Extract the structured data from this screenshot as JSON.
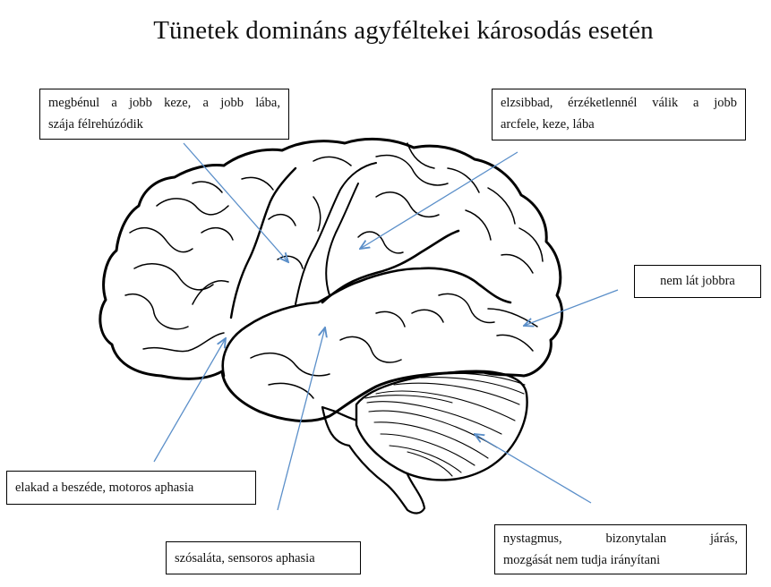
{
  "title": "Tünetek domináns agyféltekei károsodás esetén",
  "labels": {
    "motor": {
      "line1": "megbénul a jobb keze, a jobb lába,",
      "line2": "szája félrehúzódik"
    },
    "sensory": {
      "line1": "elzsibbad, érzéketlennél válik a jobb",
      "line2": "arcfele, keze, lába"
    },
    "vision": "nem lát jobbra",
    "motor_aphasia": "elakad a beszéde, motoros aphasia",
    "sensory_aphasia": "szósaláta, sensoros aphasia",
    "cerebellum": {
      "line1": "nystagmus, bizonytalan járás,",
      "line2": "mozgását nem tudja irányítani"
    }
  },
  "colors": {
    "arrow": "#5b8fc9",
    "outline": "#000000"
  }
}
